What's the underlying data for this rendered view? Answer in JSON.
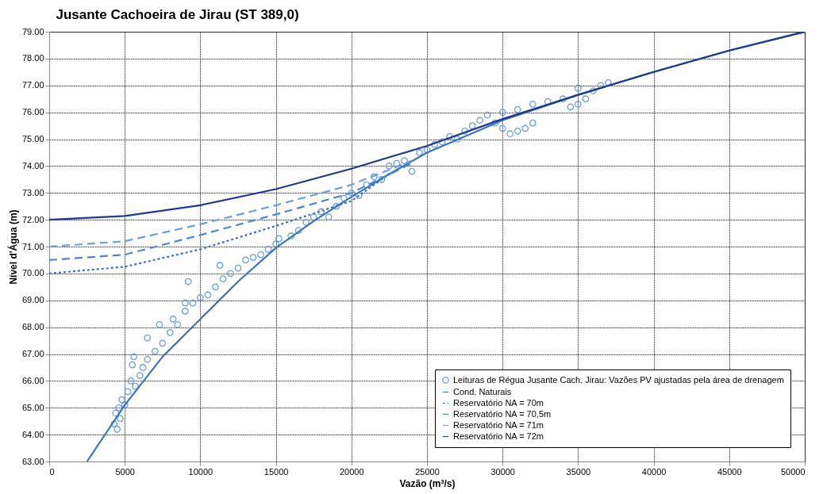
{
  "chart_data": {
    "type": "line",
    "title": "Jusante Cachoeira de Jirau (ST 389,0)",
    "xlabel": "Vazão (m³/s)",
    "ylabel": "Nível d'Água (m)",
    "xlim": [
      0,
      50000
    ],
    "xticks": [
      0,
      5000,
      10000,
      15000,
      20000,
      25000,
      30000,
      35000,
      40000,
      45000,
      50000
    ],
    "ylim": [
      63,
      79
    ],
    "yticks": [
      {
        "value": 63,
        "label": "63.00"
      },
      {
        "value": 64,
        "label": "64.00"
      },
      {
        "value": 65,
        "label": "65.00"
      },
      {
        "value": 66,
        "label": "66.00"
      },
      {
        "value": 67,
        "label": "67.00"
      },
      {
        "value": 68,
        "label": "68.00"
      },
      {
        "value": 69,
        "label": "69.00"
      },
      {
        "value": 70,
        "label": "70.00"
      },
      {
        "value": 71,
        "label": "71.00"
      },
      {
        "value": 72,
        "label": "72.00"
      },
      {
        "value": 73,
        "label": "73.00"
      },
      {
        "value": 74,
        "label": "74.00"
      },
      {
        "value": 75,
        "label": "75.00"
      },
      {
        "value": 76,
        "label": "76.00"
      },
      {
        "value": 77,
        "label": "77.00"
      },
      {
        "value": 78,
        "label": "78.00"
      },
      {
        "value": 79,
        "label": "79.00"
      }
    ],
    "grid": true,
    "legend": "bottom right",
    "series": [
      {
        "name": "Leituras de Régua Jusante Cach. Jirau: Vazões PV ajustadas pela área de drenagem",
        "type": "scatter",
        "marker": "circle",
        "color": "#5b94d8",
        "x": [
          4300,
          4400,
          4500,
          4600,
          4700,
          4800,
          5000,
          5200,
          5400,
          5500,
          5600,
          5700,
          6000,
          6200,
          6500,
          6500,
          7000,
          7300,
          7500,
          8000,
          8200,
          8500,
          9000,
          9000,
          9200,
          9500,
          10000,
          10500,
          11000,
          11300,
          11500,
          12000,
          12500,
          13000,
          13500,
          14000,
          14500,
          15000,
          15200,
          16000,
          16500,
          17000,
          17500,
          18000,
          18500,
          19000,
          19500,
          20000,
          20500,
          21000,
          21500,
          22000,
          22500,
          23000,
          23500,
          24000,
          24500,
          25000,
          25500,
          26000,
          26500,
          27000,
          27500,
          28000,
          28500,
          29000,
          29500,
          30000,
          30500,
          31000,
          31500,
          32000,
          30000,
          31000,
          32000,
          33000,
          34000,
          34500,
          35000,
          35500,
          35000,
          36000,
          36500,
          37000
        ],
        "values": [
          64.4,
          64.8,
          64.2,
          65.0,
          64.6,
          65.3,
          65.1,
          65.6,
          66.0,
          66.6,
          66.9,
          65.8,
          66.2,
          66.5,
          66.8,
          67.6,
          67.1,
          68.1,
          67.4,
          67.8,
          68.3,
          68.1,
          68.6,
          68.9,
          69.7,
          68.9,
          69.1,
          69.2,
          69.5,
          70.3,
          69.8,
          70.0,
          70.2,
          70.5,
          70.6,
          70.7,
          70.9,
          71.1,
          71.3,
          71.4,
          71.6,
          71.9,
          72.1,
          72.3,
          72.1,
          72.5,
          72.8,
          73.0,
          72.9,
          73.3,
          73.6,
          73.5,
          74.0,
          74.1,
          74.2,
          73.8,
          74.5,
          74.6,
          74.8,
          74.9,
          75.1,
          75.0,
          75.3,
          75.5,
          75.7,
          75.9,
          75.6,
          75.4,
          75.2,
          75.3,
          75.4,
          75.6,
          76.0,
          76.1,
          76.3,
          76.4,
          76.5,
          76.2,
          76.3,
          76.5,
          76.9,
          76.8,
          77.0,
          77.1
        ]
      },
      {
        "name": "Cond. Naturais",
        "line_style": "solid",
        "color": "#3b73c8",
        "x": [
          2500,
          5000,
          7500,
          10000,
          12500,
          15000,
          17500,
          20000,
          22500,
          25000,
          30000,
          35000,
          40000,
          45000,
          50000
        ],
        "values": [
          63,
          65.1,
          66.9,
          68.3,
          69.7,
          70.95,
          71.95,
          72.85,
          73.7,
          74.5,
          75.7,
          76.65,
          77.5,
          78.3,
          79.0
        ]
      },
      {
        "name": "Reservatório NA = 70m",
        "line_style": "dotted",
        "color": "#3a6fc4",
        "x": [
          0,
          5000,
          10000,
          15000,
          20000,
          22500
        ],
        "values": [
          70.0,
          70.25,
          70.9,
          71.77,
          72.7,
          73.7
        ]
      },
      {
        "name": "Reservatório NA = 70,5m",
        "line_style": "dashed",
        "color": "#4a86d0",
        "x": [
          0,
          5000,
          10000,
          15000,
          20000,
          24000
        ],
        "values": [
          70.5,
          70.7,
          71.43,
          72.2,
          73.0,
          74.1
        ]
      },
      {
        "name": "Reservatório NA = 71m",
        "line_style": "dashed",
        "color": "#6aa0dc",
        "x": [
          0,
          5000,
          10000,
          15000,
          20000,
          24000
        ],
        "values": [
          71.0,
          71.2,
          71.83,
          72.54,
          73.3,
          74.2
        ]
      },
      {
        "name": "Reservatório NA = 72m",
        "line_style": "solid",
        "color": "#1f3a8a",
        "x": [
          0,
          5000,
          10000,
          15000,
          20000,
          25000,
          30000,
          35000,
          40000,
          45000,
          50000
        ],
        "values": [
          72.0,
          72.14,
          72.54,
          73.14,
          73.9,
          74.75,
          75.75,
          76.65,
          77.5,
          78.3,
          79.0
        ]
      }
    ]
  }
}
